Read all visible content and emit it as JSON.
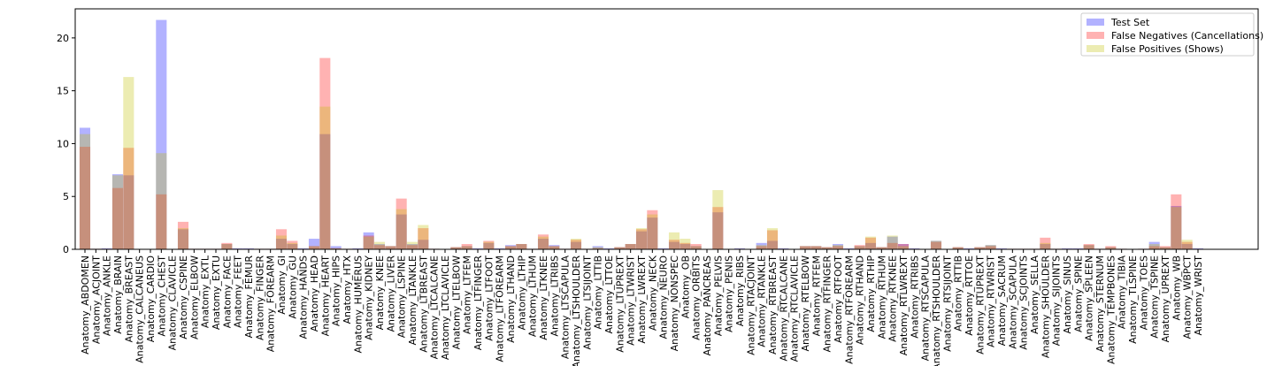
{
  "chart_data": {
    "type": "bar",
    "categories": [
      "Anatomy_ABDOMEN",
      "Anatomy_ACJOINT",
      "Anatomy_ANKLE",
      "Anatomy_BRAIN",
      "Anatomy_BREAST",
      "Anatomy_CALCANEUS",
      "Anatomy_CARDIO",
      "Anatomy_CHEST",
      "Anatomy_CLAVICLE",
      "Anatomy_CSPINE",
      "Anatomy_ELBOW",
      "Anatomy_EXTL",
      "Anatomy_EXTU",
      "Anatomy_FACE",
      "Anatomy_FEET",
      "Anatomy_FEMUR",
      "Anatomy_FINGER",
      "Anatomy_FOREARM",
      "Anatomy_GI",
      "Anatomy_GU",
      "Anatomy_HANDS",
      "Anatomy_HEAD",
      "Anatomy_HEART",
      "Anatomy_HIPS",
      "Anatomy_HTX",
      "Anatomy_HUMERUS",
      "Anatomy_KIDNEY",
      "Anatomy_KNEE",
      "Anatomy_LIVER",
      "Anatomy_LSPINE",
      "Anatomy_LTANKLE",
      "Anatomy_LTBREAST",
      "Anatomy_LTCALCANE",
      "Anatomy_LTCLAVICLE",
      "Anatomy_LTELBOW",
      "Anatomy_LTFEM",
      "Anatomy_LTFINGER",
      "Anatomy_LTFOOT",
      "Anatomy_LTFOREARM",
      "Anatomy_LTHAND",
      "Anatomy_LTHIP",
      "Anatomy_LTHUM",
      "Anatomy_LTKNEE",
      "Anatomy_LTRIBS",
      "Anatomy_LTSCAPULA",
      "Anatomy_LTSHOULDER",
      "Anatomy_LTSIJOINT",
      "Anatomy_LTTIB",
      "Anatomy_LTTOE",
      "Anatomy_LTUPREXT",
      "Anatomy_LTWRIST",
      "Anatomy_LWREXT",
      "Anatomy_NECK",
      "Anatomy_NEURO",
      "Anatomy_NONSPEC",
      "Anatomy_OB",
      "Anatomy_ORBITS",
      "Anatomy_PANCREAS",
      "Anatomy_PELVIS",
      "Anatomy_PENIS",
      "Anatomy_RIBS",
      "Anatomy_RTACJOINT",
      "Anatomy_RTANKLE",
      "Anatomy_RTBREAST",
      "Anatomy_RTCALCANE",
      "Anatomy_RTCLAVICLE",
      "Anatomy_RTELBOW",
      "Anatomy_RTFEM",
      "Anatomy_RTFINGER",
      "Anatomy_RTFOOT",
      "Anatomy_RTFOREARM",
      "Anatomy_RTHAND",
      "Anatomy_RTHIP",
      "Anatomy_RTHUM",
      "Anatomy_RTKNEE",
      "Anatomy_RTLWREXT",
      "Anatomy_RTRIBS",
      "Anatomy_RTSCAPULA",
      "Anatomy_RTSHOULDER",
      "Anatomy_RTSIJOINT",
      "Anatomy_RTTIB",
      "Anatomy_RTTOE",
      "Anatomy_RTUPREXT",
      "Anatomy_RTWRIST",
      "Anatomy_SACRUM",
      "Anatomy_SCAPULA",
      "Anatomy_SCJOINTS",
      "Anatomy_SELLA",
      "Anatomy_SHOULDER",
      "Anatomy_SIJOINTS",
      "Anatomy_SINUS",
      "Anatomy_SPINE",
      "Anatomy_SPLEEN",
      "Anatomy_STERNUM",
      "Anatomy_TEMPBONES",
      "Anatomy_TIBIA",
      "Anatomy_TLSPINE",
      "Anatomy_TOES",
      "Anatomy_TSPINE",
      "Anatomy_UPREXT",
      "Anatomy_WB",
      "Anatomy_WBPCT",
      "Anatomy_WRIST"
    ],
    "series": [
      {
        "name": "Test Set",
        "color": "#0000ff",
        "values": [
          11.5,
          0.05,
          0.1,
          7.1,
          7.0,
          0,
          0,
          21.7,
          0,
          1.9,
          0.05,
          0.05,
          0.05,
          0.5,
          0.1,
          0.1,
          0.05,
          0.05,
          1.0,
          0.5,
          0.1,
          1.0,
          10.9,
          0.3,
          0.05,
          0.1,
          1.6,
          0.5,
          0.3,
          3.3,
          0.5,
          0.9,
          0.05,
          0,
          0.2,
          0.3,
          0.1,
          0.6,
          0.1,
          0.4,
          0.5,
          0.05,
          1.0,
          0.4,
          0.05,
          0.7,
          0.05,
          0.3,
          0.1,
          0.2,
          0.5,
          1.7,
          3.0,
          0.1,
          0.7,
          0.5,
          0.3,
          0,
          3.5,
          0,
          0.1,
          0,
          0.6,
          0.8,
          0.1,
          0,
          0.3,
          0.3,
          0.2,
          0.5,
          0.1,
          0.3,
          0.6,
          0.2,
          1.2,
          0.5,
          0.1,
          0,
          0.8,
          0,
          0.2,
          0.1,
          0.2,
          0.4,
          0.1,
          0.05,
          0.05,
          0.05,
          0.5,
          0.05,
          0.1,
          0.1,
          0.4,
          0.05,
          0.2,
          0.05,
          0,
          0.05,
          0.7,
          0.2,
          4.1,
          0.5,
          0.1
        ]
      },
      {
        "name": "False Negatives (Cancellations)",
        "color": "#ff0000",
        "values": [
          9.7,
          0.05,
          0.05,
          5.8,
          9.6,
          0,
          0,
          5.2,
          0,
          2.6,
          0.05,
          0.05,
          0.05,
          0.6,
          0.05,
          0.05,
          0.05,
          0.05,
          1.9,
          0.8,
          0.05,
          0.3,
          18.1,
          0.1,
          0.05,
          0.05,
          1.3,
          0.4,
          0.3,
          4.8,
          0.4,
          2.0,
          0.05,
          0,
          0.2,
          0.5,
          0.05,
          0.8,
          0.05,
          0.3,
          0.5,
          0.05,
          1.4,
          0.3,
          0.05,
          0.9,
          0.05,
          0.1,
          0.05,
          0.2,
          0.5,
          1.9,
          3.7,
          0.05,
          0.9,
          0.6,
          0.5,
          0,
          4.0,
          0,
          0.05,
          0,
          0.3,
          1.8,
          0.05,
          0,
          0.3,
          0.3,
          0.2,
          0.3,
          0.05,
          0.4,
          1.1,
          0.2,
          0.6,
          0.5,
          0.05,
          0,
          0.7,
          0,
          0.2,
          0.05,
          0.2,
          0.3,
          0.05,
          0.05,
          0.05,
          0.05,
          1.1,
          0.05,
          0.05,
          0.05,
          0.5,
          0.05,
          0.3,
          0.05,
          0,
          0.05,
          0.3,
          0.3,
          5.2,
          0.7,
          0.05
        ]
      },
      {
        "name": "False Positives (Shows)",
        "color": "#bfbf00",
        "values": [
          10.9,
          0.05,
          0.05,
          7.0,
          16.3,
          0,
          0,
          9.1,
          0,
          2.0,
          0.05,
          0.05,
          0.05,
          0.5,
          0.05,
          0.05,
          0.05,
          0.05,
          1.3,
          0.6,
          0.05,
          0.3,
          13.5,
          0.1,
          0.05,
          0.05,
          1.2,
          0.7,
          0.3,
          3.8,
          0.7,
          2.3,
          0.05,
          0,
          0.2,
          0.3,
          0.05,
          0.7,
          0.05,
          0.3,
          0.5,
          0.05,
          1.2,
          0.3,
          0.05,
          1.0,
          0.05,
          0.2,
          0.05,
          0.2,
          0.5,
          2.0,
          3.3,
          0.05,
          1.6,
          1.0,
          0.3,
          0,
          5.6,
          0,
          0.05,
          0,
          0.4,
          2.0,
          0.05,
          0,
          0.3,
          0.3,
          0.2,
          0.4,
          0.05,
          0.3,
          1.2,
          0.2,
          1.3,
          0.3,
          0.05,
          0,
          0.8,
          0,
          0.2,
          0.05,
          0.2,
          0.4,
          0.05,
          0.05,
          0.05,
          0.05,
          0.6,
          0.05,
          0.05,
          0.05,
          0.4,
          0.05,
          0.2,
          0.05,
          0,
          0.05,
          0.5,
          0.2,
          4.0,
          0.9,
          0.05
        ]
      }
    ],
    "ylim": [
      0,
      22.75
    ],
    "yticks": [
      0,
      5,
      10,
      15,
      20
    ],
    "legend": "upper right"
  }
}
